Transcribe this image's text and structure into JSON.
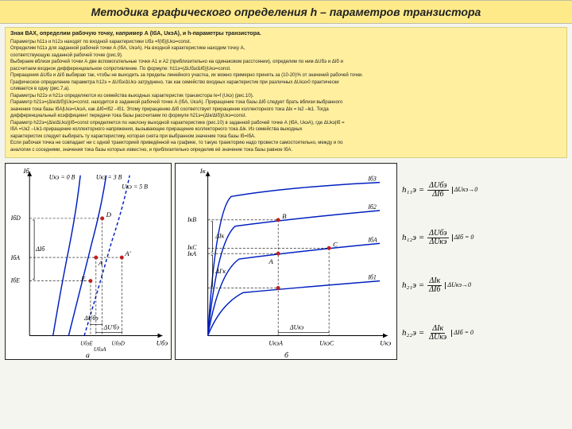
{
  "header": {
    "title": "Методика графического определения h – параметров транзистора"
  },
  "textbox": {
    "bold_intro": "Зная ВАХ, определим рабочую точку, например А (IбА, UкэА), и h-параметры транзистора.",
    "lines": [
      "Параметры h11э и h12э находят по входной характеристики Uбэ =f(Iб)|Uкэ=const.",
      "Определим h11э для заданной рабочей точки А (IбА, UкэА). На входной характеристике находим точку А,",
      "соответствующую заданной рабочей точке (рис.9).",
      "Выбираем вблизи рабочей точки А две вспомогательные точки А1 и А2 (приблизительно на одинаковом расстоянии), определим по ним ΔUбэ и ΔIб и",
      "рассчитаем входное дифференциальное сопротивление. По формуле: h11э=(ΔUбэ/ΔIб)|Uкэ=const.",
      "Приращения ΔUбэ и ΔIб выбираю так, чтобы не выходить за пределы линейного участка, их можно примерно принять за (10-20)% от значений рабочей точки.",
      "Графическое определение параметра h12э = ΔUбэ/ΔUкэ затруднено, так как семейство входных характеристик при различных ΔUкэ≥0 практически",
      "сливается в одну (рис.7,а).",
      "Параметры h22э и h21э определяются из семейства выходных характеристик транзистора Iк=f (Uкэ) (рис.10).",
      "Параметр h21э=(ΔIк/ΔIб)|Uкэ=const. находится в заданной рабочей точке А (IбА, UкэА). Приращение тока базы ΔIб следует брать вблизи выбранного",
      "значения тока базы IбА|Uкэ=UкэА, как ΔIб=Iб2 –Iб1. Этому приращению ΔIб соответствует приращение коллекторного тока ΔIк = Iк2 –Iк1. Тогда",
      "дифференциальный коэффициент передачи тока базы рассчитаем по формуле h21э=(ΔIк/ΔIб)|Uкэ=const.",
      "Параметр h22э=(ΔIк/ΔUкэ)|Iб=const определяется по наклону выходной характеристике (рис.10) в заданной рабочей точке А (IбА, UкэА), где ΔUкэ|Iб =",
      "IбА =Uк2 –Uк1-приращение коллекторного напряжения, вызывающее приращение коллекторного тока ΔIк. Из семейства выходных",
      "характеристик следует выбирать ту характеристику, которая снята при выбранном значение тока базы Iб=IбА.",
      "Если рабочая точка не совпадает ни с одной траекторией приведённой на графике, то такую траекторию надо провести самостоятельно, между и по",
      "аналогии с соседними, значения тока базы которых известно, и приблизительно определив её значение тока базы равное IбА."
    ]
  },
  "chart_a": {
    "label_caption": "а",
    "y_axis_label": "Iб",
    "x_axis_label": "Uбэ",
    "curve_labels": [
      "Uкэ = 0 В",
      "Uкэ = 3 В",
      "Uкэ = 5 В"
    ],
    "y_ticks": [
      "IбD",
      "IбА",
      "IбE"
    ],
    "x_ticks": [
      "UбэЕ",
      "UбэА",
      "UбэD"
    ],
    "points": [
      "D",
      "A",
      "E",
      "A'"
    ],
    "delta_labels": [
      "ΔIб",
      "ΔUбэ",
      "ΔU'бэ"
    ],
    "colors": {
      "curve": "#0020c0",
      "point": "#c02020",
      "axis": "#000000",
      "grid": "#000000"
    }
  },
  "chart_b": {
    "label_caption": "б",
    "y_axis_label": "Iк",
    "x_axis_label": "Uкэ",
    "curve_labels": [
      "Iб3",
      "Iб2",
      "IбА",
      "Iб1"
    ],
    "y_ticks": [
      "IкВ",
      "IкС",
      "IкА"
    ],
    "x_ticks": [
      "UкэА",
      "UкэС"
    ],
    "points": [
      "B",
      "C",
      "A"
    ],
    "delta_labels": [
      "ΔIк",
      "ΔI'к",
      "ΔUкэ"
    ],
    "colors": {
      "curve": "#0020c0",
      "point": "#c02020",
      "axis": "#000000"
    }
  },
  "formulas": {
    "h11": {
      "lhs": "h₁₁э =",
      "num": "ΔUбэ",
      "den": "ΔIб",
      "cond": "ΔUкэ→0"
    },
    "h12": {
      "lhs": "h₁₂э =",
      "num": "ΔUбэ",
      "den": "ΔUкэ",
      "cond": "ΔIб = 0"
    },
    "h21": {
      "lhs": "h₂₁э =",
      "num": "ΔIк",
      "den": "ΔIб",
      "cond": "ΔUкэ→0"
    },
    "h22": {
      "lhs": "h₂₂э =",
      "num": "ΔIк",
      "den": "ΔUкэ",
      "cond": "ΔIб = 0"
    }
  }
}
